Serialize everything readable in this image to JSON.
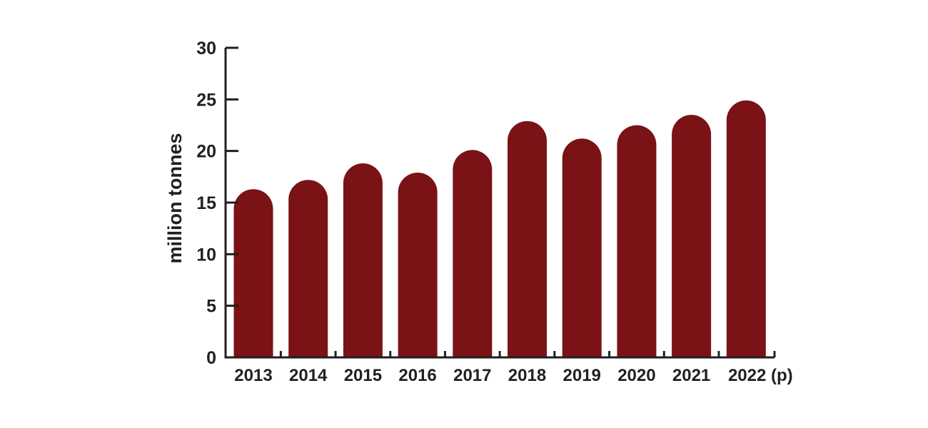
{
  "chart_data": {
    "type": "bar",
    "title": "",
    "xlabel": "",
    "ylabel": "million tonnes",
    "ylim": [
      0,
      30
    ],
    "yticks": [
      "0",
      "5",
      "10",
      "15",
      "20",
      "25",
      "30"
    ],
    "grid": false,
    "categories": [
      "2013",
      "2014",
      "2015",
      "2016",
      "2017",
      "2018",
      "2019",
      "2020",
      "2021",
      "2022 (p)"
    ],
    "values": [
      16.3,
      17.2,
      18.8,
      17.9,
      20.1,
      22.9,
      21.2,
      22.5,
      23.5,
      24.9
    ],
    "bar_color": "#7a1216",
    "axis_color": "#231f20"
  }
}
